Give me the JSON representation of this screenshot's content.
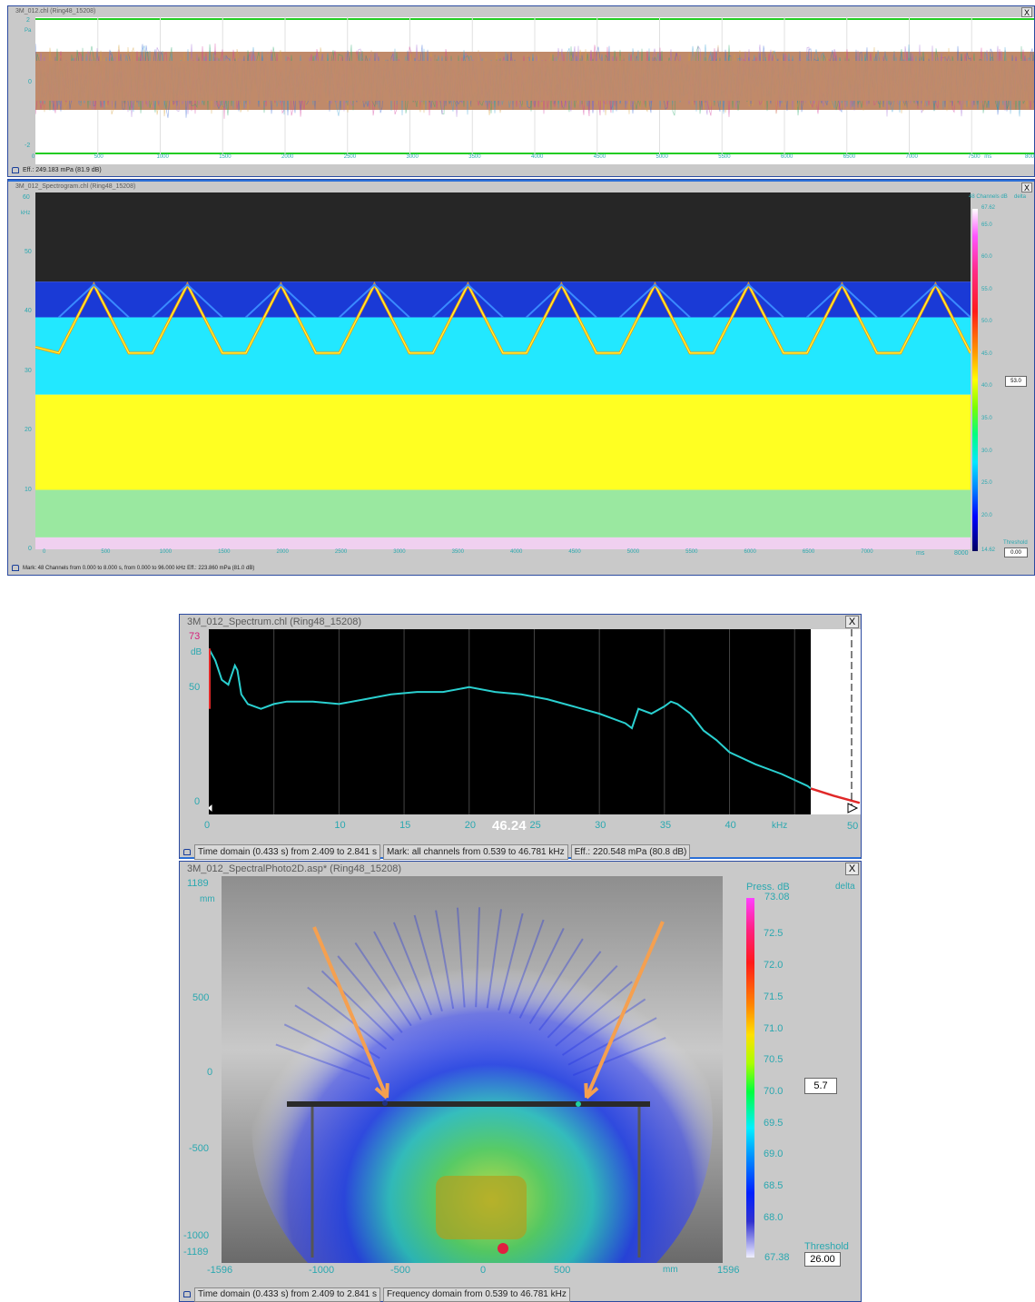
{
  "panel1": {
    "title": "3M_012.chl (Ring48_15208)",
    "close": "X",
    "y_unit": "Pa",
    "y_ticks": [
      "2",
      "0",
      "-2"
    ],
    "x_ticks": [
      "0",
      "500",
      "1000",
      "1500",
      "2000",
      "2500",
      "3000",
      "3500",
      "4000",
      "4500",
      "5000",
      "5500",
      "6000",
      "6500",
      "7000",
      "7500"
    ],
    "x_unit": "ms",
    "x_end": "8000",
    "status": "Eff.: 249.183 mPa (81.9 dB)"
  },
  "panel2": {
    "title": "3M_012_Spectrogram.chl (Ring48_15208)",
    "close": "X",
    "y_top": "60",
    "y_unit": "kHz",
    "y_ticks": [
      "50",
      "40",
      "30",
      "20",
      "10",
      "0"
    ],
    "x_ticks": [
      "0",
      "500",
      "1000",
      "1500",
      "2000",
      "2500",
      "3000",
      "3500",
      "4000",
      "4500",
      "5000",
      "5500",
      "6000",
      "6500",
      "7000"
    ],
    "x_unit": "ms",
    "x_end": "8000",
    "colorbar_title": "48 Channels dB",
    "colorbar_delta": "delta",
    "colorbar_max": "67.62",
    "colorbar_ticks": [
      "65.0",
      "60.0",
      "55.0",
      "50.0",
      "45.0",
      "40.0",
      "35.0",
      "30.0",
      "25.0",
      "20.0"
    ],
    "colorbar_min": "14.62",
    "delta_value": "53.0",
    "threshold_label": "Threshold",
    "threshold_value": "0.00",
    "status": "Mark: 48 Channels from 0.000 to 8.000 s, from 0.000 to 96.000 kHz  Eff.: 223.860 mPa (81.0 dB)"
  },
  "panel3": {
    "title": "3M_012_Spectrum.chl (Ring48_15208)",
    "close": "X",
    "y_max": "73",
    "y_unit": "dB",
    "y_ticks": [
      "50",
      "0"
    ],
    "x_ticks": [
      "0",
      "10",
      "15",
      "20",
      "25",
      "30",
      "35",
      "40"
    ],
    "x_unit": "kHz",
    "x_end": "50",
    "cursor_value": "46.24",
    "status_segments": [
      "Time domain (0.433 s) from 2.409 to 2.841 s",
      "Mark: all channels from 0.539 to 46.781 kHz",
      "Eff.: 220.548 mPa (80.8 dB)"
    ]
  },
  "panel4": {
    "title": "3M_012_SpectralPhoto2D.asp* (Ring48_15208)",
    "close": "X",
    "y_ticks": [
      "1189",
      "500",
      "0",
      "-500",
      "-1000",
      "-1189"
    ],
    "y_unit": "mm",
    "x_ticks": [
      "-1596",
      "-1000",
      "-500",
      "0",
      "500",
      "1596"
    ],
    "x_unit": "mm",
    "colorbar_title": "Press. dB",
    "colorbar_delta": "delta",
    "colorbar_max": "73.08",
    "colorbar_ticks": [
      "72.5",
      "72.0",
      "71.5",
      "71.0",
      "70.5",
      "70.0",
      "69.5",
      "69.0",
      "68.5",
      "68.0"
    ],
    "colorbar_min": "67.38",
    "delta_value": "5.7",
    "threshold_label": "Threshold",
    "threshold_value": "26.00",
    "status_segments": [
      "Time domain (0.433 s) from 2.409 to 2.841 s",
      "Frequency domain from 0.539 to 46.781 kHz"
    ]
  },
  "chart_data": [
    {
      "type": "line",
      "title": "3M_012.chl (Ring48_15208)",
      "ylabel": "Pa",
      "xlabel": "ms",
      "xlim": [
        0,
        8000
      ],
      "ylim": [
        -2,
        2
      ],
      "series_note_visible": false,
      "series": [
        {
          "values_range": [
            -0.6,
            0.6
          ]
        }
      ]
    },
    {
      "type": "heatmap",
      "title": "3M_012_Spectrogram.chl (Ring48_15208)",
      "xlabel": "ms",
      "ylabel": "kHz",
      "xlim": [
        0,
        8000
      ],
      "ylim": [
        0,
        60
      ],
      "zlim": [
        14.62,
        67.62
      ],
      "sweep_peaks_x": [
        500,
        1300,
        2100,
        2900,
        3700,
        4500,
        5300,
        6100,
        6900,
        7700
      ],
      "sweep_peak_khz": 44.5,
      "sweep_trough_khz": 33
    },
    {
      "type": "line",
      "title": "3M_012_Spectrum.chl (Ring48_15208)",
      "xlabel": "kHz",
      "ylabel": "dB",
      "xlim": [
        0,
        50
      ],
      "ylim": [
        0,
        73
      ],
      "x": [
        0,
        0.5,
        1,
        1.5,
        2,
        2.2,
        2.5,
        3,
        4,
        5,
        6,
        8,
        10,
        12,
        14,
        16,
        18,
        20,
        22,
        24,
        26,
        28,
        30,
        31,
        32,
        32.5,
        33,
        34,
        35,
        35.5,
        36,
        37,
        38,
        39,
        40,
        42,
        44,
        46,
        46.24,
        48,
        50
      ],
      "values": [
        65,
        60,
        52,
        50,
        58,
        56,
        46,
        42,
        40,
        42,
        43,
        43,
        42,
        44,
        46,
        47,
        47,
        49,
        47,
        46,
        44,
        41,
        38,
        36,
        34,
        32,
        40,
        38,
        41,
        43,
        42,
        38,
        31,
        27,
        22,
        17,
        13,
        8,
        7,
        4,
        1
      ]
    },
    {
      "type": "heatmap",
      "title": "3M_012_SpectralPhoto2D.asp* (Ring48_15208)",
      "xlabel": "mm",
      "ylabel": "mm",
      "xlim": [
        -1596,
        1596
      ],
      "ylim": [
        -1189,
        1189
      ],
      "zlim": [
        67.38,
        73.08
      ]
    }
  ]
}
